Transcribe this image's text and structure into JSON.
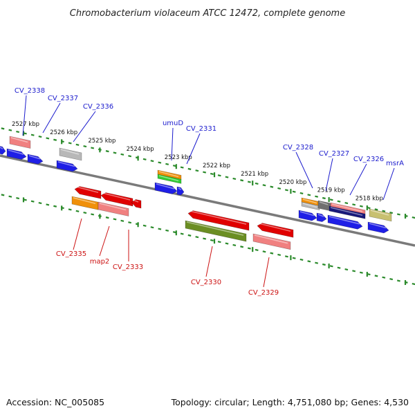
{
  "header": {
    "title": "Chromobacterium violaceum ATCC 12472, complete genome"
  },
  "footer": {
    "accession": "Accession: NC_005085",
    "topology": "Topology: circular; Length: 4,751,080 bp; Genes: 4,530"
  },
  "colors": {
    "backbone": "#7a7a7a",
    "ticks": "#2a8a2a",
    "label_top": "#1a1acd",
    "label_bottom": "#cc1111",
    "blue": "#1f1fe6",
    "red": "#e00000",
    "pink": "#f08080",
    "orange": "#f0900a",
    "gray": "#b8b8b8",
    "olive": "#6b8e23",
    "green": "#32cd32",
    "darkgray": "#707070",
    "navy": "#18187a",
    "khaki": "#c8c070"
  },
  "kbp_ticks": [
    "2527 kbp",
    "2526 kbp",
    "2525 kbp",
    "2524 kbp",
    "2523 kbp",
    "2522 kbp",
    "2521 kbp",
    "2520 kbp",
    "2519 kbp",
    "2518 kbp"
  ],
  "labels_top": [
    "CV_2338",
    "CV_2337",
    "CV_2336",
    "umuD",
    "CV_2331",
    "CV_2328",
    "CV_2327",
    "CV_2326",
    "msrA"
  ],
  "labels_bottom": [
    "CV_2335",
    "map2",
    "CV_2333",
    "CV_2330",
    "CV_2329"
  ]
}
